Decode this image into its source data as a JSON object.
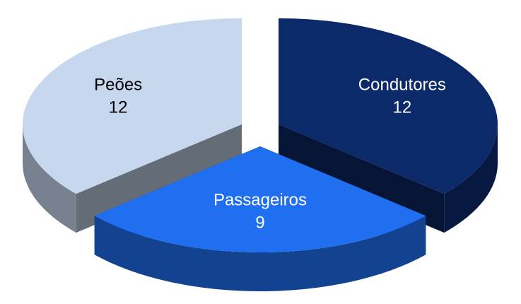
{
  "chart_data": {
    "type": "pie",
    "categories": [
      "Condutores",
      "Passageiros",
      "Peões"
    ],
    "values": [
      12,
      9,
      12
    ],
    "colors": [
      "#0c2a6a",
      "#1f6ff0",
      "#c6d7ee"
    ],
    "label_colors": [
      "#ffffff",
      "#ffffff",
      "#000000"
    ]
  }
}
